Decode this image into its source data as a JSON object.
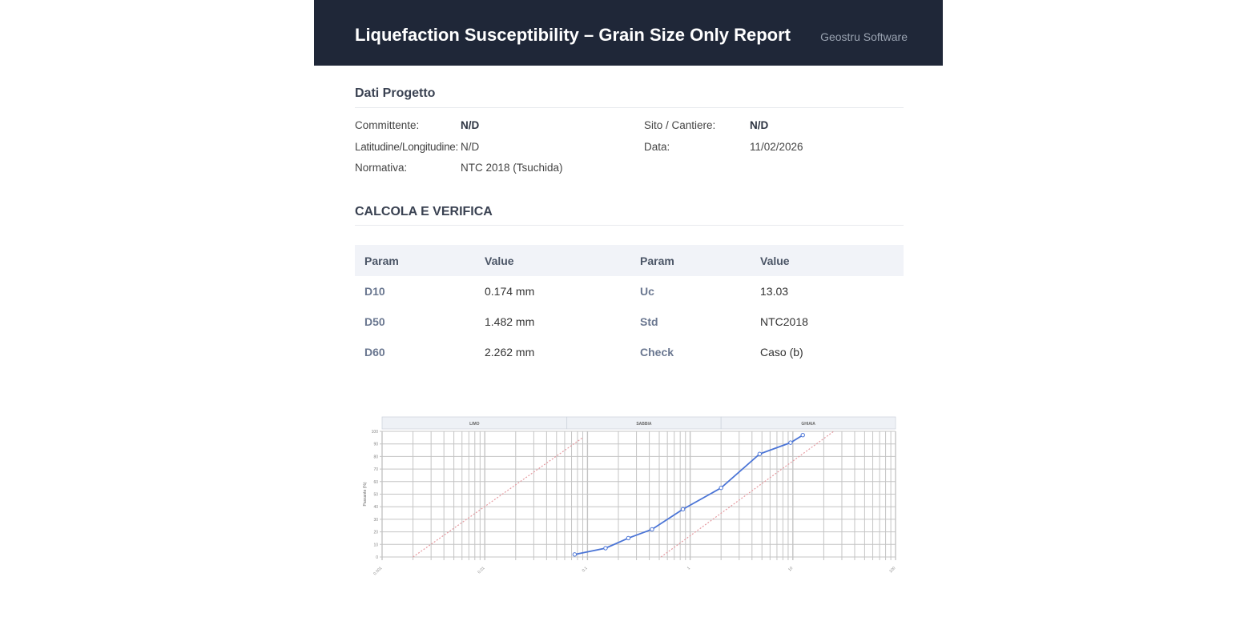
{
  "header": {
    "title": "Liquefaction Susceptibility – Grain Size Only Report",
    "brand": "Geostru Software"
  },
  "project": {
    "title": "Dati Progetto",
    "fields": [
      {
        "label": "Committente:",
        "value": "N/D"
      },
      {
        "label": "Sito / Cantiere:",
        "value": "N/D"
      },
      {
        "label": "Latitudine/Longitudine:",
        "value": "N/D"
      },
      {
        "label": "Data:",
        "value": "11/02/2026"
      },
      {
        "label": "Normativa:",
        "value": "NTC 2018 (Tsuchida)"
      }
    ]
  },
  "calc": {
    "title": "CALCOLA E VERIFICA",
    "headers": [
      "Param",
      "Value",
      "Param",
      "Value"
    ],
    "rows": [
      [
        "D10",
        "0.174 mm",
        "Uc",
        "13.03"
      ],
      [
        "D50",
        "1.482 mm",
        "Std",
        "NTC2018"
      ],
      [
        "D60",
        "2.262 mm",
        "Check",
        "Caso (b)"
      ]
    ]
  },
  "chart_data": {
    "type": "line",
    "xscale": "log",
    "xlim": [
      0.001,
      100
    ],
    "ylim": [
      0,
      100
    ],
    "ylabel": "Passante (%)",
    "xticks": [
      "0.001",
      "0.01",
      "0.1",
      "1",
      "10",
      "100"
    ],
    "yticks": [
      "0",
      "10",
      "20",
      "30",
      "40",
      "50",
      "60",
      "70",
      "80",
      "90",
      "100"
    ],
    "zones": [
      {
        "label": "LIMO",
        "from": 0.001,
        "to": 0.063
      },
      {
        "label": "SABBIA",
        "from": 0.063,
        "to": 2
      },
      {
        "label": "GHIAIA",
        "from": 2,
        "to": 100
      }
    ],
    "grid": true,
    "series": [
      {
        "x": [
          0.075,
          0.15,
          0.25,
          0.425,
          0.85,
          2,
          4.75,
          9.5,
          12.5
        ],
        "y": [
          2,
          7,
          15,
          22,
          38,
          55,
          82,
          91,
          97
        ],
        "color": "#4a74d6"
      }
    ],
    "limit_curves": [
      {
        "x": [
          0.002,
          0.09
        ],
        "y": [
          0,
          95
        ],
        "color": "#e59aa0"
      },
      {
        "x": [
          0.52,
          25
        ],
        "y": [
          0,
          100
        ],
        "color": "#e59aa0"
      }
    ]
  }
}
